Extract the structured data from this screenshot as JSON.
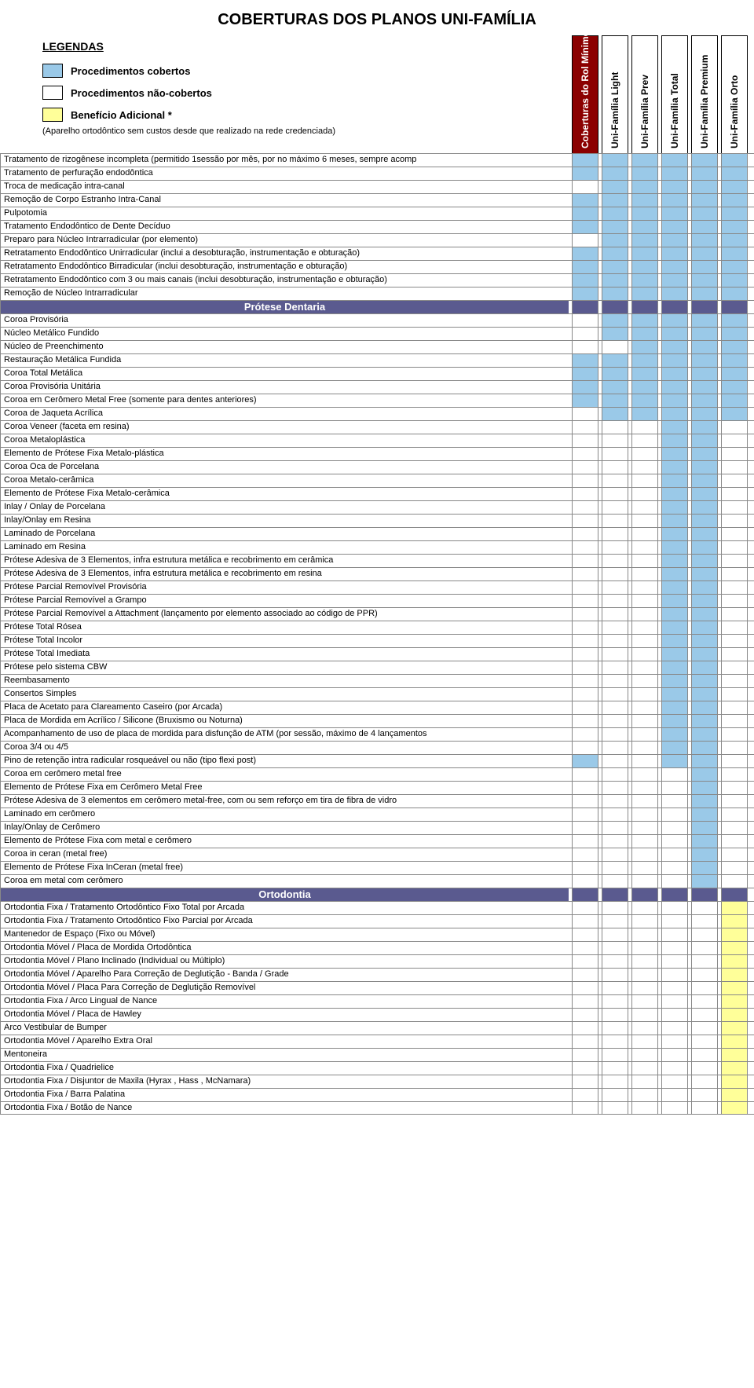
{
  "title": "COBERTURAS DOS PLANOS UNI-FAMÍLIA",
  "colors": {
    "covered": "#9ac9e8",
    "notcovered": "#ffffff",
    "bonus": "#ffff99",
    "sectionHeader": "#5a5a8f",
    "mainColHeader": "#8b0000",
    "border": "#888888"
  },
  "legend": {
    "title": "LEGENDAS",
    "items": [
      {
        "label": "Procedimentos cobertos",
        "color": "#9ac9e8"
      },
      {
        "label": "Procedimentos não-cobertos",
        "color": "#ffffff"
      },
      {
        "label": "Benefício Adicional *",
        "color": "#ffff99"
      }
    ],
    "note": "(Aparelho ortodôntico sem custos desde que realizado na rede credenciada)"
  },
  "columns": [
    {
      "label": "Coberturas do Rol Mínimo Obrigatório",
      "bg": "#8b0000",
      "fg": "#ffffff"
    },
    {
      "label": "Uni-Família Light",
      "bg": "#ffffff",
      "fg": "#000000"
    },
    {
      "label": "Uni-Família Prev",
      "bg": "#ffffff",
      "fg": "#000000"
    },
    {
      "label": "Uni-Família Total",
      "bg": "#ffffff",
      "fg": "#000000"
    },
    {
      "label": "Uni-Família Premium",
      "bg": "#ffffff",
      "fg": "#000000"
    },
    {
      "label": "Uni-Família Orto",
      "bg": "#ffffff",
      "fg": "#000000"
    }
  ],
  "rows": [
    {
      "label": "Tratamento de rizogênese incompleta (permitido 1sessão por mês, por no máximo  6 meses, sempre acomp",
      "c": [
        "c",
        "c",
        "c",
        "c",
        "c",
        "c"
      ]
    },
    {
      "label": "Tratamento de perfuração endodôntica",
      "c": [
        "c",
        "c",
        "c",
        "c",
        "c",
        "c"
      ]
    },
    {
      "label": "Troca de medicação intra-canal",
      "c": [
        "n",
        "c",
        "c",
        "c",
        "c",
        "c"
      ]
    },
    {
      "label": "Remoção de Corpo Estranho Intra-Canal",
      "c": [
        "c",
        "c",
        "c",
        "c",
        "c",
        "c"
      ]
    },
    {
      "label": "Pulpotomia",
      "c": [
        "c",
        "c",
        "c",
        "c",
        "c",
        "c"
      ]
    },
    {
      "label": "Tratamento Endodôntico de Dente Decíduo",
      "c": [
        "c",
        "c",
        "c",
        "c",
        "c",
        "c"
      ]
    },
    {
      "label": "Preparo para Núcleo Intrarradicular (por elemento)",
      "c": [
        "n",
        "c",
        "c",
        "c",
        "c",
        "c"
      ]
    },
    {
      "label": "Retratamento Endodôntico Unirradicular (inclui a desobturação, instrumentação e obturação)",
      "c": [
        "c",
        "c",
        "c",
        "c",
        "c",
        "c"
      ]
    },
    {
      "label": "Retratamento Endodôntico Birradicular (inclui desobturação, instrumentação e obturação)",
      "c": [
        "c",
        "c",
        "c",
        "c",
        "c",
        "c"
      ]
    },
    {
      "label": "Retratamento Endodôntico com 3 ou mais canais (inclui desobturação, instrumentação e obturação)",
      "c": [
        "c",
        "c",
        "c",
        "c",
        "c",
        "c"
      ]
    },
    {
      "label": "Remoção de Núcleo Intrarradicular",
      "c": [
        "c",
        "c",
        "c",
        "c",
        "c",
        "c"
      ]
    },
    {
      "label": "Prótese Dentaria",
      "section": true,
      "c": [
        "c",
        "c",
        "c",
        "c",
        "c",
        "c"
      ]
    },
    {
      "label": "Coroa Provisória",
      "c": [
        "n",
        "c",
        "c",
        "c",
        "c",
        "c"
      ]
    },
    {
      "label": "Núcleo Metálico Fundido",
      "c": [
        "n",
        "c",
        "c",
        "c",
        "c",
        "c"
      ]
    },
    {
      "label": "Núcleo de Preenchimento",
      "c": [
        "n",
        "n",
        "c",
        "c",
        "c",
        "c"
      ]
    },
    {
      "label": "Restauração Metálica Fundida",
      "c": [
        "c",
        "c",
        "c",
        "c",
        "c",
        "c"
      ]
    },
    {
      "label": "Coroa Total Metálica",
      "c": [
        "c",
        "c",
        "c",
        "c",
        "c",
        "c"
      ]
    },
    {
      "label": "Coroa Provisória Unitária",
      "c": [
        "c",
        "c",
        "c",
        "c",
        "c",
        "c"
      ]
    },
    {
      "label": "Coroa em Cerômero Metal Free (somente para dentes anteriores)",
      "c": [
        "c",
        "c",
        "c",
        "c",
        "c",
        "c"
      ]
    },
    {
      "label": "Coroa de Jaqueta Acrílica",
      "c": [
        "n",
        "c",
        "c",
        "c",
        "c",
        "c"
      ]
    },
    {
      "label": "Coroa Veneer (faceta em resina)",
      "c": [
        "n",
        "n",
        "n",
        "c",
        "c",
        "n"
      ]
    },
    {
      "label": "Coroa Metaloplástica",
      "c": [
        "n",
        "n",
        "n",
        "c",
        "c",
        "n"
      ]
    },
    {
      "label": "Elemento de Prótese Fixa Metalo-plástica",
      "c": [
        "n",
        "n",
        "n",
        "c",
        "c",
        "n"
      ]
    },
    {
      "label": "Coroa Oca de Porcelana",
      "c": [
        "n",
        "n",
        "n",
        "c",
        "c",
        "n"
      ]
    },
    {
      "label": "Coroa Metalo-cerâmica",
      "c": [
        "n",
        "n",
        "n",
        "c",
        "c",
        "n"
      ]
    },
    {
      "label": "Elemento de Prótese Fixa Metalo-cerâmica",
      "c": [
        "n",
        "n",
        "n",
        "c",
        "c",
        "n"
      ]
    },
    {
      "label": "Inlay / Onlay de Porcelana",
      "c": [
        "n",
        "n",
        "n",
        "c",
        "c",
        "n"
      ]
    },
    {
      "label": "Inlay/Onlay em Resina",
      "c": [
        "n",
        "n",
        "n",
        "c",
        "c",
        "n"
      ]
    },
    {
      "label": "Laminado de Porcelana",
      "c": [
        "n",
        "n",
        "n",
        "c",
        "c",
        "n"
      ]
    },
    {
      "label": "Laminado em Resina",
      "c": [
        "n",
        "n",
        "n",
        "c",
        "c",
        "n"
      ]
    },
    {
      "label": "Prótese Adesiva de 3 Elementos, infra estrutura metálica e recobrimento em cerâmica",
      "c": [
        "n",
        "n",
        "n",
        "c",
        "c",
        "n"
      ]
    },
    {
      "label": "Prótese Adesiva de 3 Elementos, infra estrutura metálica e recobrimento em resina",
      "c": [
        "n",
        "n",
        "n",
        "c",
        "c",
        "n"
      ]
    },
    {
      "label": "Prótese Parcial Removível Provisória",
      "c": [
        "n",
        "n",
        "n",
        "c",
        "c",
        "n"
      ]
    },
    {
      "label": "Prótese Parcial Removível a Grampo",
      "c": [
        "n",
        "n",
        "n",
        "c",
        "c",
        "n"
      ]
    },
    {
      "label": "Prótese Parcial Removível a Attachment (lançamento por elemento associado ao código de PPR)",
      "c": [
        "n",
        "n",
        "n",
        "c",
        "c",
        "n"
      ]
    },
    {
      "label": "Prótese Total Rósea",
      "c": [
        "n",
        "n",
        "n",
        "c",
        "c",
        "n"
      ]
    },
    {
      "label": "Prótese Total Incolor",
      "c": [
        "n",
        "n",
        "n",
        "c",
        "c",
        "n"
      ]
    },
    {
      "label": "Prótese Total Imediata",
      "c": [
        "n",
        "n",
        "n",
        "c",
        "c",
        "n"
      ]
    },
    {
      "label": "Prótese pelo sistema CBW",
      "c": [
        "n",
        "n",
        "n",
        "c",
        "c",
        "n"
      ]
    },
    {
      "label": "Reembasamento",
      "c": [
        "n",
        "n",
        "n",
        "c",
        "c",
        "n"
      ]
    },
    {
      "label": "Consertos Simples",
      "c": [
        "n",
        "n",
        "n",
        "c",
        "c",
        "n"
      ]
    },
    {
      "label": "Placa de Acetato para Clareamento Caseiro (por Arcada)",
      "c": [
        "n",
        "n",
        "n",
        "c",
        "c",
        "n"
      ]
    },
    {
      "label": "Placa de Mordida em Acrílico / Silicone (Bruxismo ou Noturna)",
      "c": [
        "n",
        "n",
        "n",
        "c",
        "c",
        "n"
      ]
    },
    {
      "label": "Acompanhamento de uso de placa de mordida para disfunção de ATM (por sessão, máximo de 4 lançamentos",
      "c": [
        "n",
        "n",
        "n",
        "c",
        "c",
        "n"
      ]
    },
    {
      "label": "Coroa 3/4 ou 4/5",
      "c": [
        "n",
        "n",
        "n",
        "c",
        "c",
        "n"
      ]
    },
    {
      "label": "Pino de retenção intra radicular rosqueável ou não (tipo flexi post)",
      "c": [
        "c",
        "n",
        "n",
        "c",
        "c",
        "n"
      ]
    },
    {
      "label": "Coroa em cerômero metal free",
      "c": [
        "n",
        "n",
        "n",
        "n",
        "c",
        "n"
      ]
    },
    {
      "label": "Elemento de Prótese Fixa em Cerômero Metal Free",
      "c": [
        "n",
        "n",
        "n",
        "n",
        "c",
        "n"
      ]
    },
    {
      "label": "Prótese Adesiva de 3 elementos em cerômero metal-free, com ou sem reforço em tira de fibra de vidro",
      "c": [
        "n",
        "n",
        "n",
        "n",
        "c",
        "n"
      ]
    },
    {
      "label": "Laminado em cerômero",
      "c": [
        "n",
        "n",
        "n",
        "n",
        "c",
        "n"
      ]
    },
    {
      "label": "Inlay/Onlay de Cerômero",
      "c": [
        "n",
        "n",
        "n",
        "n",
        "c",
        "n"
      ]
    },
    {
      "label": "Elemento de Prótese Fixa com metal e cerômero",
      "c": [
        "n",
        "n",
        "n",
        "n",
        "c",
        "n"
      ]
    },
    {
      "label": "Coroa in ceran (metal free)",
      "c": [
        "n",
        "n",
        "n",
        "n",
        "c",
        "n"
      ]
    },
    {
      "label": "Elemento de Prótese Fixa InCeran (metal free)",
      "c": [
        "n",
        "n",
        "n",
        "n",
        "c",
        "n"
      ]
    },
    {
      "label": "Coroa em metal com cerômero",
      "c": [
        "n",
        "n",
        "n",
        "n",
        "c",
        "n"
      ]
    },
    {
      "label": "Ortodontia",
      "section": true,
      "c": [
        "c",
        "c",
        "c",
        "c",
        "c",
        "c"
      ]
    },
    {
      "label": "Ortodontia Fixa / Tratamento Ortodôntico Fixo Total por Arcada",
      "c": [
        "n",
        "n",
        "n",
        "n",
        "n",
        "b"
      ]
    },
    {
      "label": "Ortodontia Fixa / Tratamento Ortodôntico Fixo Parcial por Arcada",
      "c": [
        "n",
        "n",
        "n",
        "n",
        "n",
        "b"
      ]
    },
    {
      "label": "Mantenedor de Espaço (Fixo ou Móvel)",
      "c": [
        "n",
        "n",
        "n",
        "n",
        "n",
        "b"
      ]
    },
    {
      "label": "Ortodontia Móvel / Placa de Mordida Ortodôntica",
      "c": [
        "n",
        "n",
        "n",
        "n",
        "n",
        "b"
      ]
    },
    {
      "label": "Ortodontia Móvel / Plano Inclinado (Individual ou Múltiplo)",
      "c": [
        "n",
        "n",
        "n",
        "n",
        "n",
        "b"
      ]
    },
    {
      "label": "Ortodontia Móvel / Aparelho Para Correção de Deglutição - Banda / Grade",
      "c": [
        "n",
        "n",
        "n",
        "n",
        "n",
        "b"
      ]
    },
    {
      "label": "Ortodontia Móvel / Placa Para Correção de Deglutição Removível",
      "c": [
        "n",
        "n",
        "n",
        "n",
        "n",
        "b"
      ]
    },
    {
      "label": "Ortodontia Fixa / Arco Lingual de Nance",
      "c": [
        "n",
        "n",
        "n",
        "n",
        "n",
        "b"
      ]
    },
    {
      "label": "Ortodontia Móvel / Placa de Hawley",
      "c": [
        "n",
        "n",
        "n",
        "n",
        "n",
        "b"
      ]
    },
    {
      "label": "Arco Vestibular de Bumper",
      "c": [
        "n",
        "n",
        "n",
        "n",
        "n",
        "b"
      ]
    },
    {
      "label": "Ortodontia Móvel / Aparelho Extra Oral",
      "c": [
        "n",
        "n",
        "n",
        "n",
        "n",
        "b"
      ]
    },
    {
      "label": "Mentoneira",
      "c": [
        "n",
        "n",
        "n",
        "n",
        "n",
        "b"
      ]
    },
    {
      "label": "Ortodontia Fixa / Quadrielice",
      "c": [
        "n",
        "n",
        "n",
        "n",
        "n",
        "b"
      ]
    },
    {
      "label": "Ortodontia Fixa / Disjuntor de Maxila (Hyrax , Hass , McNamara)",
      "c": [
        "n",
        "n",
        "n",
        "n",
        "n",
        "b"
      ]
    },
    {
      "label": "Ortodontia Fixa / Barra Palatina",
      "c": [
        "n",
        "n",
        "n",
        "n",
        "n",
        "b"
      ]
    },
    {
      "label": "Ortodontia Fixa / Botão de Nance",
      "c": [
        "n",
        "n",
        "n",
        "n",
        "n",
        "b"
      ]
    }
  ]
}
